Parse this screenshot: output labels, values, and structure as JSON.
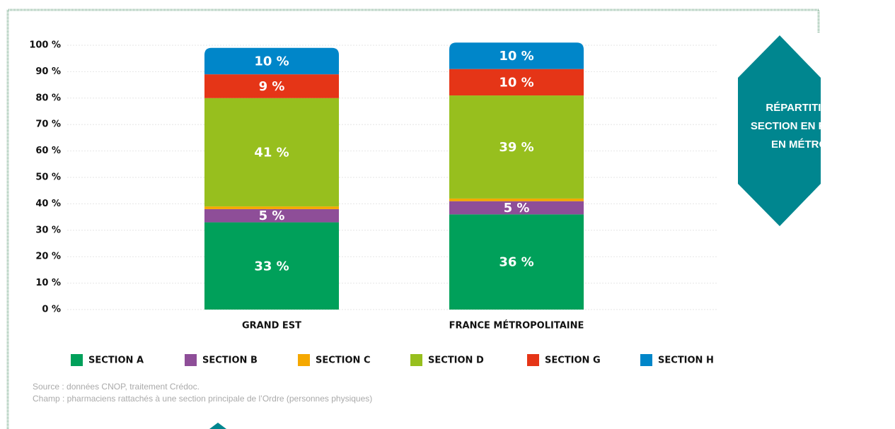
{
  "chart_data": {
    "type": "stacked_bar",
    "title": "RÉPARTITION PAR SECTION EN RÉGION ET EN MÉTROPOLE",
    "categories": [
      "GRAND EST",
      "FRANCE MÉTROPOLITAINE"
    ],
    "series": [
      {
        "name": "SECTION A",
        "color": "#00a05a",
        "values": [
          33,
          36
        ],
        "value_labels": [
          "33 %",
          "36 %"
        ]
      },
      {
        "name": "SECTION B",
        "color": "#8e4e98",
        "values": [
          5,
          5
        ],
        "value_labels": [
          "5 %",
          "5 %"
        ]
      },
      {
        "name": "SECTION C",
        "color": "#f5a800",
        "values": [
          1,
          1
        ],
        "value_labels": [
          null,
          null
        ]
      },
      {
        "name": "SECTION D",
        "color": "#97bf1e",
        "values": [
          41,
          39
        ],
        "value_labels": [
          "41 %",
          "39 %"
        ]
      },
      {
        "name": "SECTION G",
        "color": "#e53517",
        "values": [
          9,
          10
        ],
        "value_labels": [
          "9 %",
          "10 %"
        ]
      },
      {
        "name": "SECTION H",
        "color": "#0086c9",
        "values": [
          10,
          10
        ],
        "value_labels": [
          "10 %",
          "10 %"
        ]
      }
    ],
    "ylim": [
      0,
      100
    ],
    "yticks": [
      {
        "value": 0,
        "label": "0 %"
      },
      {
        "value": 10,
        "label": "10 %"
      },
      {
        "value": 20,
        "label": "20 %"
      },
      {
        "value": 30,
        "label": "30 %"
      },
      {
        "value": 40,
        "label": "40 %"
      },
      {
        "value": 50,
        "label": "50 %"
      },
      {
        "value": 60,
        "label": "60 %"
      },
      {
        "value": 70,
        "label": "70 %"
      },
      {
        "value": 80,
        "label": "80 %"
      },
      {
        "value": 90,
        "label": "90 %"
      },
      {
        "value": 100,
        "label": "100 %"
      }
    ],
    "grid": true,
    "annotations": [
      "Source : données CNOP, traitement Crédoc.",
      "Champ : pharmaciens rattachés à une section principale de l’Ordre (personnes physiques)"
    ]
  }
}
